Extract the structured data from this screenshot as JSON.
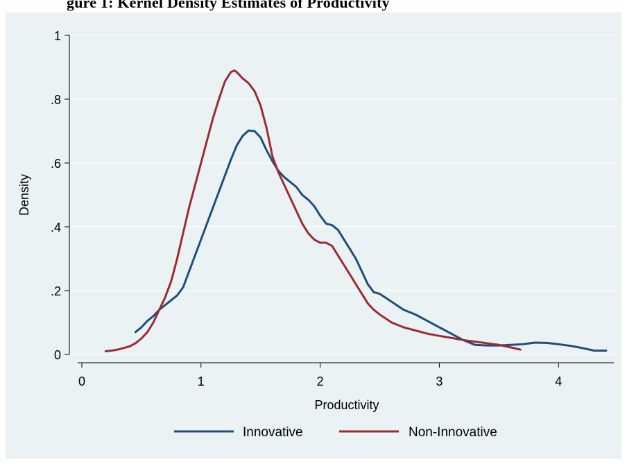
{
  "header": {
    "title_fragment": "gure 1: Kernel Density Estimates of Productivity"
  },
  "chart_data": {
    "type": "line",
    "title": "gure 1: Kernel Density Estimates of Productivity",
    "xlabel": "Productivity",
    "ylabel": "Density",
    "xlim": [
      0,
      4.5
    ],
    "ylim": [
      0,
      1
    ],
    "xticks": [
      0,
      1,
      2,
      3,
      4
    ],
    "xtick_labels": [
      "0",
      "1",
      "2",
      "3",
      "4"
    ],
    "yticks": [
      0,
      0.2,
      0.4,
      0.6,
      0.8,
      1
    ],
    "ytick_labels": [
      "0",
      ".2",
      ".4",
      ".6",
      ".8",
      "1"
    ],
    "grid": true,
    "legend_position": "bottom",
    "colors": {
      "background": "#eaf2f3",
      "innovative": "#1f4e79",
      "non_innovative": "#9b2c33"
    },
    "series": [
      {
        "name": "Innovative",
        "color": "#1f4e79",
        "x": [
          0.45,
          0.5,
          0.55,
          0.6,
          0.65,
          0.7,
          0.75,
          0.8,
          0.85,
          0.9,
          0.95,
          1.0,
          1.05,
          1.1,
          1.15,
          1.2,
          1.25,
          1.3,
          1.35,
          1.4,
          1.45,
          1.5,
          1.55,
          1.6,
          1.65,
          1.7,
          1.75,
          1.8,
          1.85,
          1.9,
          1.95,
          2.0,
          2.05,
          2.1,
          2.15,
          2.2,
          2.25,
          2.3,
          2.35,
          2.4,
          2.45,
          2.5,
          2.6,
          2.7,
          2.8,
          2.9,
          3.0,
          3.1,
          3.2,
          3.3,
          3.4,
          3.5,
          3.6,
          3.7,
          3.8,
          3.9,
          4.0,
          4.1,
          4.2,
          4.3,
          4.4
        ],
        "y": [
          0.07,
          0.085,
          0.105,
          0.12,
          0.14,
          0.155,
          0.17,
          0.185,
          0.21,
          0.26,
          0.31,
          0.36,
          0.41,
          0.46,
          0.51,
          0.56,
          0.61,
          0.655,
          0.685,
          0.702,
          0.7,
          0.68,
          0.64,
          0.605,
          0.575,
          0.555,
          0.54,
          0.525,
          0.5,
          0.485,
          0.465,
          0.435,
          0.41,
          0.405,
          0.39,
          0.36,
          0.33,
          0.3,
          0.26,
          0.22,
          0.195,
          0.19,
          0.165,
          0.14,
          0.125,
          0.105,
          0.085,
          0.065,
          0.045,
          0.03,
          0.028,
          0.028,
          0.03,
          0.032,
          0.037,
          0.036,
          0.032,
          0.027,
          0.02,
          0.012,
          0.012
        ]
      },
      {
        "name": "Non-Innovative",
        "color": "#9b2c33",
        "x": [
          0.2,
          0.25,
          0.3,
          0.35,
          0.4,
          0.45,
          0.5,
          0.55,
          0.6,
          0.65,
          0.7,
          0.75,
          0.8,
          0.85,
          0.9,
          0.95,
          1.0,
          1.05,
          1.1,
          1.15,
          1.2,
          1.25,
          1.28,
          1.3,
          1.35,
          1.4,
          1.45,
          1.5,
          1.55,
          1.6,
          1.65,
          1.7,
          1.75,
          1.8,
          1.85,
          1.9,
          1.95,
          2.0,
          2.05,
          2.1,
          2.15,
          2.2,
          2.25,
          2.3,
          2.35,
          2.4,
          2.45,
          2.5,
          2.6,
          2.7,
          2.8,
          2.9,
          3.0,
          3.1,
          3.2,
          3.3,
          3.4,
          3.5,
          3.6,
          3.68
        ],
        "y": [
          0.01,
          0.012,
          0.015,
          0.02,
          0.025,
          0.035,
          0.05,
          0.07,
          0.1,
          0.14,
          0.18,
          0.23,
          0.3,
          0.38,
          0.46,
          0.53,
          0.6,
          0.67,
          0.74,
          0.8,
          0.855,
          0.885,
          0.89,
          0.885,
          0.865,
          0.85,
          0.825,
          0.78,
          0.71,
          0.62,
          0.57,
          0.53,
          0.49,
          0.45,
          0.41,
          0.38,
          0.36,
          0.35,
          0.35,
          0.34,
          0.31,
          0.28,
          0.25,
          0.22,
          0.19,
          0.16,
          0.14,
          0.125,
          0.1,
          0.085,
          0.075,
          0.065,
          0.058,
          0.052,
          0.045,
          0.04,
          0.035,
          0.03,
          0.022,
          0.015
        ]
      }
    ]
  }
}
